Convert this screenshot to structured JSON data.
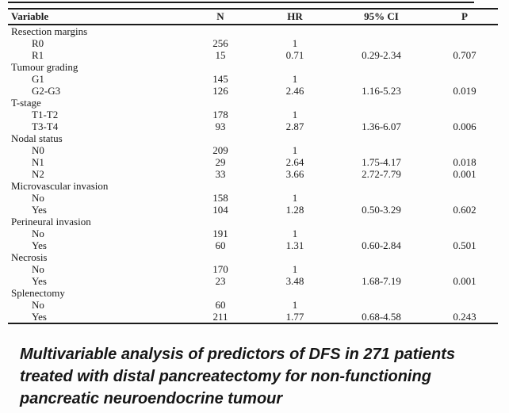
{
  "page": {
    "background_color": "#fdfdfd",
    "text_color": "#1b1b1b",
    "rule_color": "#1b1b1b"
  },
  "table": {
    "columns": [
      "Variable",
      "N",
      "HR",
      "95% CI",
      "P"
    ],
    "rows": [
      {
        "type": "group",
        "variable": "Resection margins",
        "n": "",
        "hr": "",
        "ci": "",
        "p": ""
      },
      {
        "type": "item",
        "variable": "R0",
        "n": "256",
        "hr": "1",
        "ci": "",
        "p": ""
      },
      {
        "type": "item",
        "variable": "R1",
        "n": "15",
        "hr": "0.71",
        "ci": "0.29-2.34",
        "p": "0.707"
      },
      {
        "type": "group",
        "variable": "Tumour grading",
        "n": "",
        "hr": "",
        "ci": "",
        "p": ""
      },
      {
        "type": "item",
        "variable": "G1",
        "n": "145",
        "hr": "1",
        "ci": "",
        "p": ""
      },
      {
        "type": "item",
        "variable": "G2-G3",
        "n": "126",
        "hr": "2.46",
        "ci": "1.16-5.23",
        "p": "0.019"
      },
      {
        "type": "group",
        "variable": "T-stage",
        "n": "",
        "hr": "",
        "ci": "",
        "p": ""
      },
      {
        "type": "item",
        "variable": "T1-T2",
        "n": "178",
        "hr": "1",
        "ci": "",
        "p": ""
      },
      {
        "type": "item",
        "variable": "T3-T4",
        "n": "93",
        "hr": "2.87",
        "ci": "1.36-6.07",
        "p": "0.006"
      },
      {
        "type": "group",
        "variable": "Nodal status",
        "n": "",
        "hr": "",
        "ci": "",
        "p": ""
      },
      {
        "type": "item",
        "variable": "N0",
        "n": "209",
        "hr": "1",
        "ci": "",
        "p": ""
      },
      {
        "type": "item",
        "variable": "N1",
        "n": "29",
        "hr": "2.64",
        "ci": "1.75-4.17",
        "p": "0.018"
      },
      {
        "type": "item",
        "variable": "N2",
        "n": "33",
        "hr": "3.66",
        "ci": "2.72-7.79",
        "p": "0.001"
      },
      {
        "type": "group",
        "variable": "Microvascular invasion",
        "n": "",
        "hr": "",
        "ci": "",
        "p": ""
      },
      {
        "type": "item",
        "variable": "No",
        "n": "158",
        "hr": "1",
        "ci": "",
        "p": ""
      },
      {
        "type": "item",
        "variable": "Yes",
        "n": "104",
        "hr": "1.28",
        "ci": "0.50-3.29",
        "p": "0.602"
      },
      {
        "type": "group",
        "variable": "Perineural invasion",
        "n": "",
        "hr": "",
        "ci": "",
        "p": ""
      },
      {
        "type": "item",
        "variable": "No",
        "n": "191",
        "hr": "1",
        "ci": "",
        "p": ""
      },
      {
        "type": "item",
        "variable": "Yes",
        "n": "60",
        "hr": "1.31",
        "ci": "0.60-2.84",
        "p": "0.501"
      },
      {
        "type": "group",
        "variable": "Necrosis",
        "n": "",
        "hr": "",
        "ci": "",
        "p": ""
      },
      {
        "type": "item",
        "variable": "No",
        "n": "170",
        "hr": "1",
        "ci": "",
        "p": ""
      },
      {
        "type": "item",
        "variable": "Yes",
        "n": "23",
        "hr": "3.48",
        "ci": "1.68-7.19",
        "p": "0.001"
      },
      {
        "type": "group",
        "variable": "Splenectomy",
        "n": "",
        "hr": "",
        "ci": "",
        "p": ""
      },
      {
        "type": "item",
        "variable": "No",
        "n": "60",
        "hr": "1",
        "ci": "",
        "p": ""
      },
      {
        "type": "item",
        "variable": "Yes",
        "n": "211",
        "hr": "1.77",
        "ci": "0.68-4.58",
        "p": "0.243"
      }
    ]
  },
  "caption": {
    "lines": [
      "Multivariable analysis of predictors of DFS in 271 patients",
      "treated with distal pancreatectomy for non-functioning",
      "pancreatic neuroendocrine tumour"
    ],
    "full_text": "Multivariable analysis of predictors of DFS in 271 patients treated with distal pancreatectomy for non-functioning pancreatic neuroendocrine tumour"
  }
}
